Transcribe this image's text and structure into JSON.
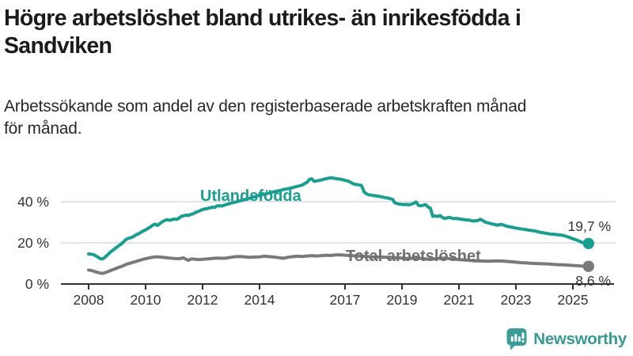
{
  "header": {
    "title_lines": [
      "Högre arbetslöshet bland utrikes- än inrikesfödda i",
      "Sandviken"
    ],
    "subtitle_lines": [
      "Arbetssökande som andel av den registerbaserade arbetskraften månad",
      "för månad."
    ]
  },
  "chart_data": {
    "type": "line",
    "title": "Högre arbetslöshet bland utrikes- än inrikesfödda i Sandviken",
    "subtitle": "Arbetssökande som andel av den registerbaserade arbetskraften månad för månad.",
    "unit": "%",
    "grid": "horizontal-only",
    "legend_position": "inline-labels-on-lines",
    "x_axis": {
      "ticks": [
        2008,
        2010,
        2012,
        2014,
        2017,
        2019,
        2021,
        2023,
        2025
      ],
      "range": [
        2007.0,
        2026.5
      ]
    },
    "y_axis": {
      "range": [
        0,
        55
      ],
      "ticks": [
        {
          "value": 0,
          "label": "0 %"
        },
        {
          "value": 20,
          "label": "20 %"
        },
        {
          "value": 40,
          "label": "40 %"
        }
      ]
    },
    "colors": {
      "accent_teal": "#199e8f",
      "accent_gray": "#7a7a7a",
      "axis": "#333333",
      "gridline": "#dcdcdc"
    },
    "series": [
      {
        "name": "Utlandsfödda",
        "color": "#199e8f",
        "name_color": "#199e8f",
        "end_label": "19,7 %",
        "end_value": 19.7,
        "points": [
          [
            2008.0,
            14.6
          ],
          [
            2008.08,
            14.5
          ],
          [
            2008.17,
            14.3
          ],
          [
            2008.25,
            13.7
          ],
          [
            2008.33,
            13.0
          ],
          [
            2008.42,
            12.3
          ],
          [
            2008.5,
            12.2
          ],
          [
            2008.58,
            13.1
          ],
          [
            2008.67,
            14.2
          ],
          [
            2008.75,
            15.4
          ],
          [
            2008.83,
            16.2
          ],
          [
            2008.92,
            17.1
          ],
          [
            2009.0,
            18.0
          ],
          [
            2009.08,
            18.9
          ],
          [
            2009.17,
            19.7
          ],
          [
            2009.25,
            20.9
          ],
          [
            2009.33,
            21.8
          ],
          [
            2009.42,
            22.3
          ],
          [
            2009.5,
            22.6
          ],
          [
            2009.58,
            23.1
          ],
          [
            2009.67,
            24.0
          ],
          [
            2009.75,
            24.4
          ],
          [
            2009.83,
            25.1
          ],
          [
            2009.92,
            25.8
          ],
          [
            2010.0,
            26.3
          ],
          [
            2010.08,
            27.0
          ],
          [
            2010.17,
            27.7
          ],
          [
            2010.25,
            28.6
          ],
          [
            2010.33,
            29.1
          ],
          [
            2010.42,
            28.5
          ],
          [
            2010.5,
            29.4
          ],
          [
            2010.58,
            30.2
          ],
          [
            2010.67,
            30.9
          ],
          [
            2010.75,
            31.3
          ],
          [
            2010.83,
            31.0
          ],
          [
            2010.92,
            31.2
          ],
          [
            2011.0,
            31.6
          ],
          [
            2011.08,
            31.4
          ],
          [
            2011.17,
            32.0
          ],
          [
            2011.25,
            32.8
          ],
          [
            2011.33,
            33.2
          ],
          [
            2011.42,
            33.5
          ],
          [
            2011.5,
            33.3
          ],
          [
            2011.58,
            33.8
          ],
          [
            2011.67,
            34.1
          ],
          [
            2011.75,
            34.8
          ],
          [
            2011.83,
            35.2
          ],
          [
            2011.92,
            35.7
          ],
          [
            2012.0,
            36.2
          ],
          [
            2012.08,
            36.5
          ],
          [
            2012.17,
            36.7
          ],
          [
            2012.25,
            37.0
          ],
          [
            2012.33,
            37.3
          ],
          [
            2012.42,
            37.2
          ],
          [
            2012.5,
            37.9
          ],
          [
            2012.58,
            38.1
          ],
          [
            2012.67,
            37.9
          ],
          [
            2012.75,
            38.3
          ],
          [
            2012.83,
            38.6
          ],
          [
            2012.92,
            39.0
          ],
          [
            2013.0,
            39.3
          ],
          [
            2013.17,
            39.9
          ],
          [
            2013.33,
            40.5
          ],
          [
            2013.5,
            41.1
          ],
          [
            2013.67,
            41.8
          ],
          [
            2013.83,
            42.4
          ],
          [
            2014.0,
            43.1
          ],
          [
            2014.17,
            43.7
          ],
          [
            2014.33,
            44.2
          ],
          [
            2014.5,
            44.8
          ],
          [
            2014.67,
            45.3
          ],
          [
            2014.83,
            45.9
          ],
          [
            2015.0,
            46.4
          ],
          [
            2015.17,
            46.9
          ],
          [
            2015.33,
            47.5
          ],
          [
            2015.5,
            48.1
          ],
          [
            2015.67,
            49.5
          ],
          [
            2015.75,
            50.8
          ],
          [
            2015.83,
            51.2
          ],
          [
            2015.92,
            49.9
          ],
          [
            2016.0,
            50.1
          ],
          [
            2016.08,
            50.3
          ],
          [
            2016.17,
            50.6
          ],
          [
            2016.25,
            50.9
          ],
          [
            2016.33,
            51.2
          ],
          [
            2016.42,
            51.4
          ],
          [
            2016.5,
            51.7
          ],
          [
            2016.58,
            51.5
          ],
          [
            2016.67,
            51.3
          ],
          [
            2016.75,
            51.1
          ],
          [
            2016.83,
            51.0
          ],
          [
            2016.92,
            50.7
          ],
          [
            2017.0,
            50.4
          ],
          [
            2017.08,
            50.1
          ],
          [
            2017.17,
            49.7
          ],
          [
            2017.25,
            49.0
          ],
          [
            2017.33,
            48.5
          ],
          [
            2017.42,
            48.3
          ],
          [
            2017.5,
            48.2
          ],
          [
            2017.58,
            47.9
          ],
          [
            2017.67,
            44.8
          ],
          [
            2017.75,
            43.9
          ],
          [
            2017.83,
            43.4
          ],
          [
            2017.92,
            43.2
          ],
          [
            2018.0,
            43.0
          ],
          [
            2018.08,
            42.9
          ],
          [
            2018.17,
            42.7
          ],
          [
            2018.25,
            42.5
          ],
          [
            2018.33,
            42.2
          ],
          [
            2018.42,
            42.0
          ],
          [
            2018.5,
            41.8
          ],
          [
            2018.58,
            41.5
          ],
          [
            2018.67,
            41.2
          ],
          [
            2018.75,
            39.5
          ],
          [
            2018.83,
            39.1
          ],
          [
            2018.92,
            38.8
          ],
          [
            2019.0,
            38.7
          ],
          [
            2019.08,
            38.6
          ],
          [
            2019.17,
            38.7
          ],
          [
            2019.25,
            38.5
          ],
          [
            2019.33,
            38.8
          ],
          [
            2019.42,
            39.3
          ],
          [
            2019.5,
            39.9
          ],
          [
            2019.58,
            38.2
          ],
          [
            2019.67,
            38.0
          ],
          [
            2019.75,
            38.3
          ],
          [
            2019.83,
            38.6
          ],
          [
            2019.92,
            37.4
          ],
          [
            2020.0,
            36.8
          ],
          [
            2020.08,
            32.9
          ],
          [
            2020.17,
            33.1
          ],
          [
            2020.25,
            32.8
          ],
          [
            2020.33,
            33.3
          ],
          [
            2020.42,
            32.4
          ],
          [
            2020.5,
            31.9
          ],
          [
            2020.58,
            32.1
          ],
          [
            2020.67,
            32.4
          ],
          [
            2020.75,
            32.0
          ],
          [
            2020.83,
            31.8
          ],
          [
            2020.92,
            31.9
          ],
          [
            2021.0,
            31.7
          ],
          [
            2021.17,
            31.3
          ],
          [
            2021.33,
            31.1
          ],
          [
            2021.5,
            30.6
          ],
          [
            2021.67,
            30.9
          ],
          [
            2021.75,
            31.5
          ],
          [
            2021.83,
            30.9
          ],
          [
            2021.92,
            30.1
          ],
          [
            2022.0,
            29.8
          ],
          [
            2022.17,
            29.2
          ],
          [
            2022.33,
            28.6
          ],
          [
            2022.5,
            29.0
          ],
          [
            2022.67,
            28.1
          ],
          [
            2022.83,
            27.7
          ],
          [
            2023.0,
            27.2
          ],
          [
            2023.17,
            26.8
          ],
          [
            2023.33,
            26.5
          ],
          [
            2023.5,
            26.1
          ],
          [
            2023.67,
            25.8
          ],
          [
            2023.83,
            25.2
          ],
          [
            2024.0,
            24.8
          ],
          [
            2024.17,
            24.4
          ],
          [
            2024.33,
            24.2
          ],
          [
            2024.5,
            23.9
          ],
          [
            2024.67,
            23.6
          ],
          [
            2024.83,
            22.9
          ],
          [
            2025.0,
            22.0
          ],
          [
            2025.17,
            21.2
          ],
          [
            2025.33,
            20.2
          ],
          [
            2025.45,
            19.9
          ],
          [
            2025.55,
            19.7
          ]
        ]
      },
      {
        "name": "Total arbetslöshet",
        "color": "#7a7a7a",
        "name_color": "#6e6e74",
        "end_label": "8,6 %",
        "end_value": 8.6,
        "points": [
          [
            2008.0,
            6.8
          ],
          [
            2008.08,
            6.6
          ],
          [
            2008.17,
            6.3
          ],
          [
            2008.25,
            5.9
          ],
          [
            2008.33,
            5.6
          ],
          [
            2008.42,
            5.3
          ],
          [
            2008.5,
            5.2
          ],
          [
            2008.58,
            5.5
          ],
          [
            2008.67,
            6.0
          ],
          [
            2008.75,
            6.4
          ],
          [
            2008.83,
            6.9
          ],
          [
            2008.92,
            7.3
          ],
          [
            2009.0,
            7.8
          ],
          [
            2009.17,
            8.6
          ],
          [
            2009.33,
            9.6
          ],
          [
            2009.5,
            10.3
          ],
          [
            2009.67,
            11.0
          ],
          [
            2009.83,
            11.7
          ],
          [
            2010.0,
            12.3
          ],
          [
            2010.17,
            12.8
          ],
          [
            2010.33,
            13.2
          ],
          [
            2010.5,
            13.1
          ],
          [
            2010.67,
            12.9
          ],
          [
            2010.83,
            12.6
          ],
          [
            2011.0,
            12.4
          ],
          [
            2011.17,
            12.3
          ],
          [
            2011.33,
            12.7
          ],
          [
            2011.5,
            11.5
          ],
          [
            2011.58,
            12.1
          ],
          [
            2011.67,
            12.2
          ],
          [
            2011.83,
            11.9
          ],
          [
            2012.0,
            12.0
          ],
          [
            2012.17,
            12.2
          ],
          [
            2012.33,
            12.4
          ],
          [
            2012.5,
            12.6
          ],
          [
            2012.67,
            12.5
          ],
          [
            2012.83,
            12.6
          ],
          [
            2013.0,
            13.0
          ],
          [
            2013.17,
            13.3
          ],
          [
            2013.33,
            13.4
          ],
          [
            2013.5,
            13.2
          ],
          [
            2013.67,
            13.0
          ],
          [
            2013.83,
            13.1
          ],
          [
            2014.0,
            13.2
          ],
          [
            2014.17,
            13.5
          ],
          [
            2014.33,
            13.3
          ],
          [
            2014.5,
            13.1
          ],
          [
            2014.67,
            12.8
          ],
          [
            2014.83,
            12.5
          ],
          [
            2015.0,
            13.0
          ],
          [
            2015.17,
            13.3
          ],
          [
            2015.33,
            13.5
          ],
          [
            2015.5,
            13.4
          ],
          [
            2015.67,
            13.6
          ],
          [
            2015.83,
            13.8
          ],
          [
            2016.0,
            13.6
          ],
          [
            2016.17,
            13.8
          ],
          [
            2016.33,
            14.0
          ],
          [
            2016.5,
            13.9
          ],
          [
            2016.67,
            14.1
          ],
          [
            2016.83,
            14.2
          ],
          [
            2017.0,
            14.0
          ],
          [
            2017.25,
            13.8
          ],
          [
            2017.5,
            13.6
          ],
          [
            2017.75,
            13.4
          ],
          [
            2018.0,
            13.2
          ],
          [
            2018.25,
            13.1
          ],
          [
            2018.5,
            13.0
          ],
          [
            2018.75,
            12.8
          ],
          [
            2019.0,
            12.6
          ],
          [
            2019.25,
            12.4
          ],
          [
            2019.5,
            12.6
          ],
          [
            2019.75,
            12.3
          ],
          [
            2020.0,
            12.0
          ],
          [
            2020.25,
            12.4
          ],
          [
            2020.5,
            12.6
          ],
          [
            2020.75,
            12.2
          ],
          [
            2021.0,
            11.9
          ],
          [
            2021.25,
            11.6
          ],
          [
            2021.5,
            11.3
          ],
          [
            2021.75,
            11.2
          ],
          [
            2022.0,
            11.1
          ],
          [
            2022.25,
            11.2
          ],
          [
            2022.5,
            11.2
          ],
          [
            2022.67,
            11.0
          ],
          [
            2022.83,
            10.8
          ],
          [
            2023.0,
            10.6
          ],
          [
            2023.17,
            10.4
          ],
          [
            2023.33,
            10.3
          ],
          [
            2023.5,
            10.1
          ],
          [
            2023.67,
            10.0
          ],
          [
            2023.83,
            9.9
          ],
          [
            2024.0,
            9.8
          ],
          [
            2024.17,
            9.7
          ],
          [
            2024.33,
            9.5
          ],
          [
            2024.5,
            9.4
          ],
          [
            2024.67,
            9.3
          ],
          [
            2024.83,
            9.2
          ],
          [
            2025.0,
            9.0
          ],
          [
            2025.17,
            8.9
          ],
          [
            2025.33,
            8.7
          ],
          [
            2025.45,
            8.65
          ],
          [
            2025.55,
            8.6
          ]
        ]
      }
    ]
  },
  "footer": {
    "brand": "Newsworthy",
    "brand_color": "#379a92",
    "logo_icon": "newsworthy-speech-bubble-bar-chart-icon"
  }
}
